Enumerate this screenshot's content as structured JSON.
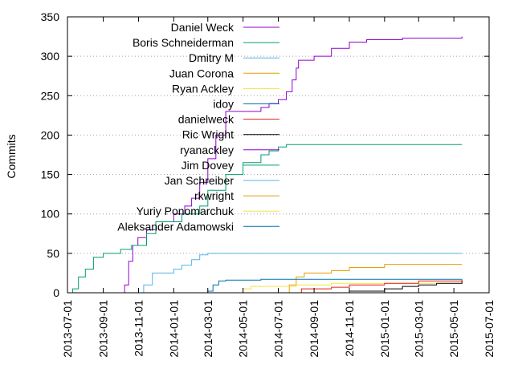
{
  "chart_data": {
    "type": "line",
    "title": "",
    "xlabel": "",
    "ylabel": "Commits",
    "ylim": [
      0,
      350
    ],
    "xlim": [
      "2013-07-01",
      "2015-07-01"
    ],
    "x_ticks": [
      "2013-07-01",
      "2013-09-01",
      "2013-11-01",
      "2014-01-01",
      "2014-03-01",
      "2014-05-01",
      "2014-07-01",
      "2014-09-01",
      "2014-11-01",
      "2015-01-01",
      "2015-03-01",
      "2015-05-01",
      "2015-07-01"
    ],
    "y_ticks": [
      "0",
      "50",
      "100",
      "150",
      "200",
      "250",
      "300",
      "350"
    ],
    "grid": "horizontal dotted",
    "legend_position": "top-left",
    "series": [
      {
        "name": "Daniel Weck",
        "color": "#9400d3",
        "points": [
          [
            "2013-07-01",
            0
          ],
          [
            "2013-10-01",
            0
          ],
          [
            "2013-10-08",
            10
          ],
          [
            "2013-10-15",
            40
          ],
          [
            "2013-10-22",
            60
          ],
          [
            "2013-10-31",
            70
          ],
          [
            "2013-11-15",
            80
          ],
          [
            "2013-12-01",
            90
          ],
          [
            "2014-01-01",
            100
          ],
          [
            "2014-01-20",
            110
          ],
          [
            "2014-02-01",
            120
          ],
          [
            "2014-02-15",
            140
          ],
          [
            "2014-03-01",
            170
          ],
          [
            "2014-03-15",
            200
          ],
          [
            "2014-04-01",
            230
          ],
          [
            "2014-06-01",
            235
          ],
          [
            "2014-06-15",
            240
          ],
          [
            "2014-07-01",
            245
          ],
          [
            "2014-07-15",
            255
          ],
          [
            "2014-07-25",
            270
          ],
          [
            "2014-08-01",
            285
          ],
          [
            "2014-08-05",
            295
          ],
          [
            "2014-09-01",
            300
          ],
          [
            "2014-10-01",
            310
          ],
          [
            "2014-11-01",
            318
          ],
          [
            "2014-12-01",
            321
          ],
          [
            "2015-02-01",
            323
          ],
          [
            "2015-05-15",
            325
          ]
        ]
      },
      {
        "name": "Boris Schneiderman",
        "color": "#009e73",
        "points": [
          [
            "2013-07-01",
            0
          ],
          [
            "2013-07-10",
            5
          ],
          [
            "2013-07-20",
            20
          ],
          [
            "2013-08-01",
            30
          ],
          [
            "2013-08-15",
            45
          ],
          [
            "2013-09-01",
            50
          ],
          [
            "2013-10-01",
            55
          ],
          [
            "2013-10-20",
            60
          ],
          [
            "2013-11-15",
            75
          ],
          [
            "2013-12-01",
            90
          ],
          [
            "2014-01-15",
            100
          ],
          [
            "2014-02-15",
            110
          ],
          [
            "2014-03-01",
            130
          ],
          [
            "2014-04-01",
            150
          ],
          [
            "2014-05-01",
            165
          ],
          [
            "2014-06-01",
            175
          ],
          [
            "2014-06-15",
            180
          ],
          [
            "2014-07-01",
            185
          ],
          [
            "2014-07-15",
            188
          ],
          [
            "2015-05-15",
            188
          ]
        ]
      },
      {
        "name": "Dmitry M",
        "color": "#56b4e9",
        "points": [
          [
            "2013-07-01",
            0
          ],
          [
            "2013-11-01",
            0
          ],
          [
            "2013-11-10",
            10
          ],
          [
            "2013-11-25",
            25
          ],
          [
            "2014-01-01",
            30
          ],
          [
            "2014-01-15",
            35
          ],
          [
            "2014-02-01",
            42
          ],
          [
            "2014-02-15",
            48
          ],
          [
            "2014-03-01",
            50
          ],
          [
            "2015-05-15",
            50
          ]
        ]
      },
      {
        "name": "Juan Corona",
        "color": "#e69f00",
        "points": [
          [
            "2013-07-01",
            0
          ],
          [
            "2014-07-15",
            0
          ],
          [
            "2014-07-20",
            10
          ],
          [
            "2014-08-01",
            20
          ],
          [
            "2014-08-15",
            25
          ],
          [
            "2014-10-01",
            28
          ],
          [
            "2014-11-01",
            32
          ],
          [
            "2015-01-01",
            36
          ],
          [
            "2015-05-15",
            36
          ]
        ]
      },
      {
        "name": "Ryan Ackley",
        "color": "#f0e442",
        "points": [
          [
            "2013-07-01",
            0
          ],
          [
            "2014-04-15",
            0
          ],
          [
            "2014-05-01",
            5
          ],
          [
            "2014-05-15",
            8
          ],
          [
            "2014-08-01",
            10
          ],
          [
            "2014-10-01",
            12
          ],
          [
            "2015-05-15",
            14
          ]
        ]
      },
      {
        "name": "idoy",
        "color": "#0072b2",
        "points": [
          [
            "2013-07-01",
            0
          ],
          [
            "2014-02-01",
            0
          ],
          [
            "2014-03-01",
            2
          ],
          [
            "2014-03-10",
            10
          ],
          [
            "2014-03-20",
            15
          ],
          [
            "2014-04-01",
            16
          ],
          [
            "2014-06-01",
            17
          ],
          [
            "2015-05-15",
            17
          ]
        ]
      },
      {
        "name": "danielweck",
        "color": "#e51e10",
        "points": [
          [
            "2013-07-01",
            0
          ],
          [
            "2014-08-01",
            0
          ],
          [
            "2014-08-10",
            5
          ],
          [
            "2014-10-01",
            7
          ],
          [
            "2014-11-01",
            10
          ],
          [
            "2015-01-01",
            12
          ],
          [
            "2015-03-01",
            15
          ],
          [
            "2015-05-15",
            17
          ]
        ]
      },
      {
        "name": "Ric Wright",
        "color": "#000000",
        "points": [
          [
            "2013-07-01",
            0
          ],
          [
            "2014-10-01",
            0
          ],
          [
            "2014-11-01",
            2
          ],
          [
            "2015-01-01",
            5
          ],
          [
            "2015-02-01",
            8
          ],
          [
            "2015-03-01",
            10
          ],
          [
            "2015-04-01",
            12
          ],
          [
            "2015-05-15",
            15
          ]
        ]
      },
      {
        "name": "ryanackley",
        "color": "#9400d3",
        "points": [
          [
            "2013-07-01",
            0
          ],
          [
            "2015-05-15",
            0
          ]
        ]
      },
      {
        "name": "Jim Dovey",
        "color": "#009e73",
        "points": [
          [
            "2013-07-01",
            0
          ],
          [
            "2015-05-15",
            0
          ]
        ]
      },
      {
        "name": "Jan Schreiber",
        "color": "#56b4e9",
        "points": [
          [
            "2013-07-01",
            0
          ],
          [
            "2015-05-15",
            0
          ]
        ]
      },
      {
        "name": "rkwright",
        "color": "#e69f00",
        "points": [
          [
            "2013-07-01",
            0
          ],
          [
            "2015-05-15",
            0
          ]
        ]
      },
      {
        "name": "Yuriy Ponomarchuk",
        "color": "#f0e442",
        "points": [
          [
            "2013-07-01",
            0
          ],
          [
            "2015-05-15",
            0
          ]
        ]
      },
      {
        "name": "Aleksander Adamowski",
        "color": "#0072b2",
        "points": [
          [
            "2013-07-01",
            0
          ],
          [
            "2015-05-15",
            0
          ]
        ]
      }
    ]
  }
}
